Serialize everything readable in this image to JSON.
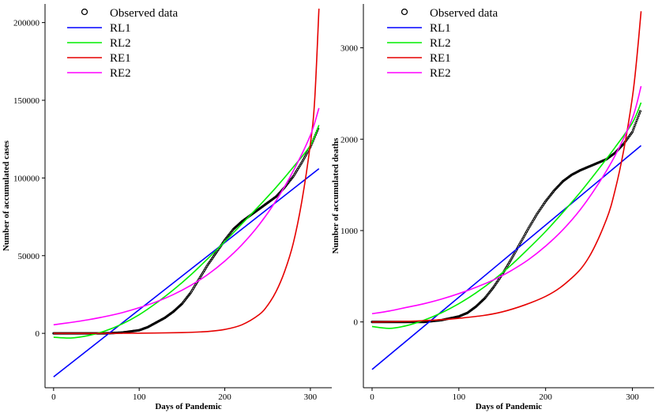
{
  "colors": {
    "RL1": "#0000ff",
    "RL2": "#00ee00",
    "RE1": "#e60000",
    "RE2": "#ff00ff",
    "observed": "#000000"
  },
  "chart_data": [
    {
      "type": "line",
      "xlabel": "Days of Pandemic",
      "ylabel": "Number of accumulated cases",
      "xlim": [
        -10,
        325
      ],
      "ylim": [
        -35000,
        212000
      ],
      "xticks": [
        0,
        100,
        200,
        300
      ],
      "yticks": [
        0,
        50000,
        100000,
        150000,
        200000
      ],
      "grid": false,
      "legend_position": "top-left",
      "legend": [
        "Observed data",
        "RL1",
        "RL2",
        "RE1",
        "RE2"
      ],
      "observed": {
        "name": "Observed data",
        "x": [
          0,
          20,
          40,
          60,
          80,
          100,
          110,
          120,
          130,
          140,
          150,
          160,
          170,
          180,
          190,
          200,
          210,
          220,
          230,
          240,
          250,
          260,
          270,
          280,
          290,
          300,
          310
        ],
        "y": [
          0,
          0,
          0,
          0,
          500,
          2000,
          4000,
          7000,
          10000,
          14000,
          19000,
          26000,
          35000,
          44000,
          52000,
          60000,
          67000,
          72000,
          76000,
          80000,
          84000,
          88000,
          94000,
          101000,
          110000,
          120000,
          133000
        ]
      },
      "series": [
        {
          "name": "RL1",
          "x": [
            0,
            310
          ],
          "y": [
            -28000,
            106000
          ]
        },
        {
          "name": "RL2",
          "x": [
            0,
            20,
            40,
            60,
            80,
            100,
            120,
            140,
            160,
            180,
            200,
            220,
            240,
            260,
            280,
            300,
            310
          ],
          "y": [
            -2500,
            -3000,
            -1500,
            1500,
            6000,
            12000,
            19500,
            28000,
            37500,
            48000,
            59000,
            70500,
            82000,
            94000,
            107000,
            121000,
            134000
          ]
        },
        {
          "name": "RE1",
          "x": [
            0,
            50,
            100,
            150,
            180,
            200,
            220,
            240,
            250,
            260,
            270,
            280,
            290,
            300,
            305,
            310
          ],
          "y": [
            0,
            0,
            100,
            500,
            1200,
            2500,
            5500,
            12000,
            18000,
            27000,
            40000,
            58000,
            85000,
            122000,
            150000,
            209000
          ]
        },
        {
          "name": "RE2",
          "x": [
            0,
            20,
            40,
            60,
            80,
            100,
            120,
            140,
            160,
            180,
            200,
            220,
            240,
            260,
            280,
            300,
            310
          ],
          "y": [
            5500,
            7000,
            8700,
            10800,
            13300,
            16500,
            20300,
            25000,
            30800,
            37800,
            46500,
            57000,
            69800,
            85500,
            104500,
            127500,
            145000
          ]
        }
      ]
    },
    {
      "type": "line",
      "xlabel": "Days of Pandemic",
      "ylabel": "Number of accumulated deaths",
      "xlim": [
        -10,
        325
      ],
      "ylim": [
        -720,
        3480
      ],
      "xticks": [
        0,
        100,
        200,
        300
      ],
      "yticks": [
        0,
        1000,
        2000,
        3000
      ],
      "grid": false,
      "legend_position": "top-left",
      "legend": [
        "Observed data",
        "RL1",
        "RL2",
        "RE1",
        "RE2"
      ],
      "observed": {
        "name": "Observed data",
        "x": [
          0,
          20,
          40,
          60,
          80,
          100,
          110,
          120,
          130,
          140,
          150,
          160,
          170,
          180,
          190,
          200,
          210,
          220,
          230,
          240,
          250,
          260,
          270,
          280,
          290,
          300,
          310
        ],
        "y": [
          0,
          0,
          0,
          0,
          20,
          60,
          100,
          170,
          260,
          380,
          520,
          680,
          850,
          1020,
          1180,
          1320,
          1440,
          1540,
          1610,
          1660,
          1700,
          1740,
          1780,
          1850,
          1950,
          2080,
          2330
        ]
      },
      "series": [
        {
          "name": "RL1",
          "x": [
            0,
            310
          ],
          "y": [
            -520,
            1930
          ]
        },
        {
          "name": "RL2",
          "x": [
            0,
            20,
            40,
            60,
            80,
            100,
            120,
            140,
            160,
            180,
            200,
            220,
            240,
            260,
            280,
            300,
            310
          ],
          "y": [
            -50,
            -70,
            -40,
            20,
            100,
            200,
            320,
            460,
            620,
            800,
            990,
            1200,
            1420,
            1660,
            1910,
            2180,
            2400
          ]
        },
        {
          "name": "RE1",
          "x": [
            0,
            50,
            100,
            150,
            200,
            230,
            250,
            270,
            280,
            290,
            300,
            305,
            310
          ],
          "y": [
            0,
            10,
            40,
            110,
            280,
            480,
            710,
            1120,
            1440,
            1880,
            2460,
            2880,
            3400
          ]
        },
        {
          "name": "RE2",
          "x": [
            0,
            20,
            40,
            60,
            80,
            100,
            120,
            140,
            160,
            180,
            200,
            220,
            240,
            260,
            280,
            300,
            310
          ],
          "y": [
            90,
            120,
            160,
            200,
            250,
            310,
            380,
            460,
            560,
            680,
            830,
            1010,
            1230,
            1500,
            1820,
            2230,
            2580
          ]
        }
      ]
    }
  ]
}
